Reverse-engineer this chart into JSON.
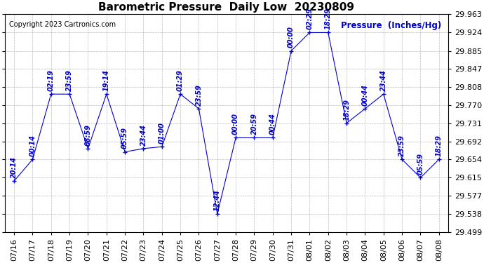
{
  "title": "Barometric Pressure  Daily Low  20230809",
  "ylabel": "Pressure  (Inches/Hg)",
  "copyright": "Copyright 2023 Cartronics.com",
  "background_color": "#ffffff",
  "line_color": "#0000cc",
  "text_color": "#0000cc",
  "grid_color": "#aaaaaa",
  "dates": [
    "07/16",
    "07/17",
    "07/18",
    "07/19",
    "07/20",
    "07/21",
    "07/22",
    "07/23",
    "07/24",
    "07/25",
    "07/26",
    "07/27",
    "07/28",
    "07/29",
    "07/30",
    "07/31",
    "08/01",
    "08/02",
    "08/03",
    "08/04",
    "08/05",
    "08/06",
    "08/07",
    "08/08"
  ],
  "values": [
    29.608,
    29.654,
    29.793,
    29.793,
    29.677,
    29.793,
    29.67,
    29.677,
    29.681,
    29.793,
    29.762,
    29.538,
    29.7,
    29.7,
    29.7,
    29.885,
    29.924,
    29.924,
    29.731,
    29.762,
    29.793,
    29.654,
    29.615,
    29.654
  ],
  "annot_labels": [
    "20:14",
    "00:14",
    "02:19",
    "23:59",
    "08:59",
    "19:14",
    "05:59",
    "23:44",
    "01:00",
    "01:29",
    "23:59",
    "12:44",
    "00:00",
    "20:59",
    "00:44",
    "00:00",
    "02:29",
    "18:29",
    "18:29",
    "00:44",
    "23:44",
    "23:59",
    "05:59",
    "18:29"
  ],
  "ylim_min": 29.499,
  "ylim_max": 29.963,
  "yticks": [
    29.499,
    29.538,
    29.577,
    29.615,
    29.654,
    29.692,
    29.731,
    29.77,
    29.808,
    29.847,
    29.885,
    29.924,
    29.963
  ],
  "title_fontsize": 11,
  "tick_fontsize": 8,
  "annot_fontsize": 7
}
